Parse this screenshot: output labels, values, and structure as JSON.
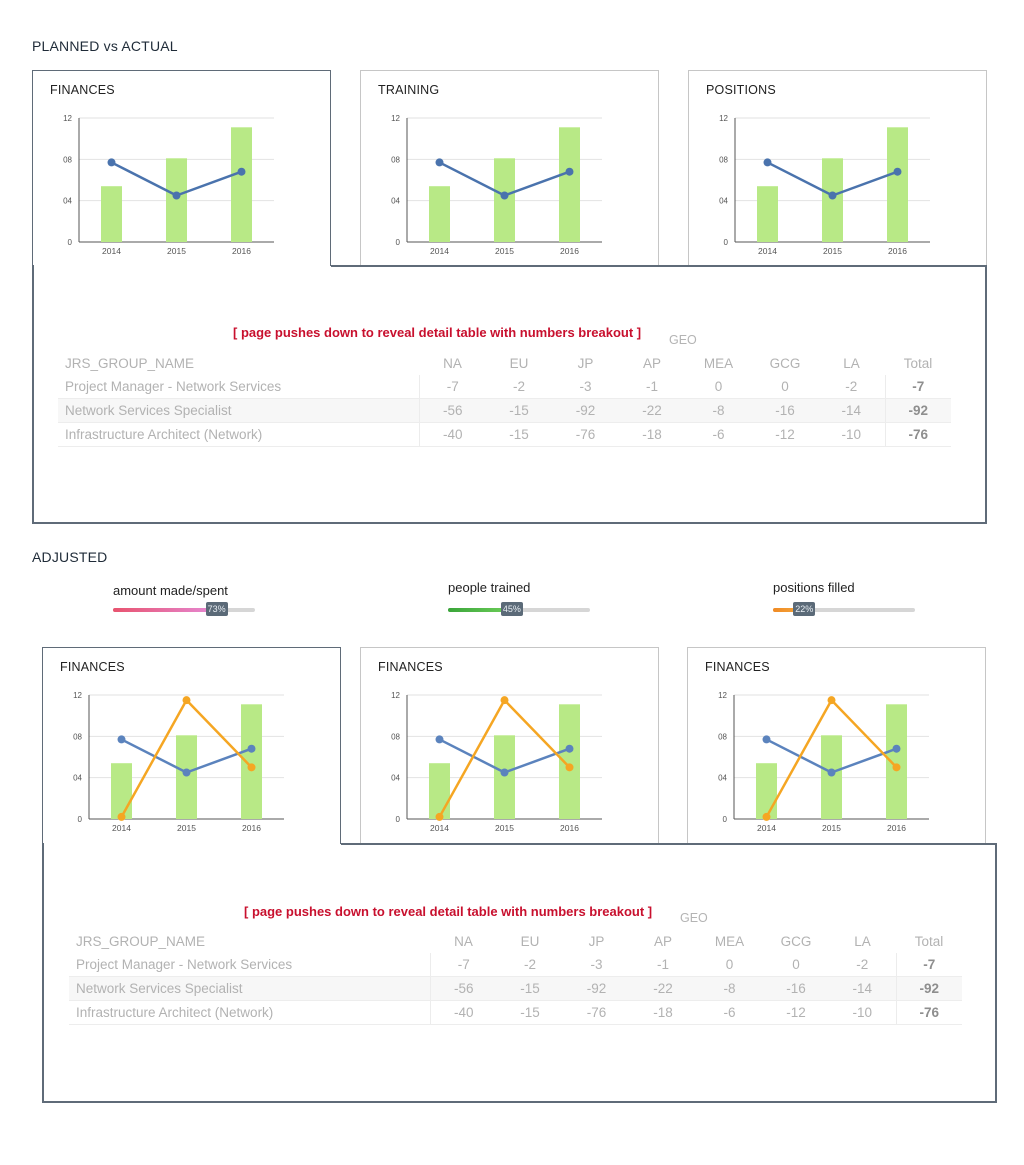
{
  "sections": {
    "planned_title": "PLANNED vs ACTUAL",
    "adjusted_title": "ADJUSTED"
  },
  "top_cards": [
    {
      "title": "FINANCES"
    },
    {
      "title": "TRAINING"
    },
    {
      "title": "POSITIONS"
    }
  ],
  "bottom_cards": [
    {
      "title": "FINANCES"
    },
    {
      "title": "FINANCES"
    },
    {
      "title": "FINANCES"
    }
  ],
  "detail": {
    "note": "[ page pushes down to reveal detail table with numbers breakout ]",
    "geo_label": "GEO",
    "columns": [
      "JRS_GROUP_NAME",
      "NA",
      "EU",
      "JP",
      "AP",
      "MEA",
      "GCG",
      "LA",
      "Total"
    ],
    "rows": [
      {
        "name": "Project Manager - Network Services",
        "values": [
          "-7",
          "-2",
          "-3",
          "-1",
          "0",
          "0",
          "-2"
        ],
        "total": "-7"
      },
      {
        "name": "Network Services Specialist",
        "values": [
          "-56",
          "-15",
          "-92",
          "-22",
          "-8",
          "-16",
          "-14"
        ],
        "total": "-92"
      },
      {
        "name": "Infrastructure Architect (Network)",
        "values": [
          "-40",
          "-15",
          "-76",
          "-18",
          "-6",
          "-12",
          "-10"
        ],
        "total": "-76"
      }
    ]
  },
  "meters": [
    {
      "label": "amount made/spent",
      "percent": 73,
      "badge": "73%",
      "color_from": "#e8536f",
      "color_to": "#e58ad6"
    },
    {
      "label": "people trained",
      "percent": 45,
      "badge": "45%",
      "color_from": "#3aa53a",
      "color_to": "#6fcf5a"
    },
    {
      "label": "positions filled",
      "percent": 22,
      "badge": "22%",
      "color_from": "#f08a24",
      "color_to": "#f5a93f"
    }
  ],
  "chart_data": [
    {
      "type": "bar",
      "categories": [
        "2014",
        "2015",
        "2016"
      ],
      "yticks": [
        "0",
        "04",
        "08",
        "12"
      ],
      "ylim": [
        0,
        12
      ],
      "series": [
        {
          "type": "bar",
          "values": [
            5.4,
            8.1,
            11.1
          ],
          "color": "#b8e986"
        },
        {
          "type": "line",
          "values": [
            7.7,
            4.5,
            6.8
          ],
          "color": "#4a73ad"
        }
      ]
    },
    {
      "type": "bar",
      "categories": [
        "2014",
        "2015",
        "2016"
      ],
      "yticks": [
        "0",
        "04",
        "08",
        "12"
      ],
      "ylim": [
        0,
        12
      ],
      "series": [
        {
          "type": "bar",
          "values": [
            5.4,
            8.1,
            11.1
          ],
          "color": "#b8e986"
        },
        {
          "type": "line",
          "values": [
            7.7,
            4.5,
            6.8
          ],
          "color": "#5b83bd"
        },
        {
          "type": "line",
          "values": [
            0.2,
            11.5,
            5.0
          ],
          "color": "#f5a623"
        }
      ]
    }
  ]
}
